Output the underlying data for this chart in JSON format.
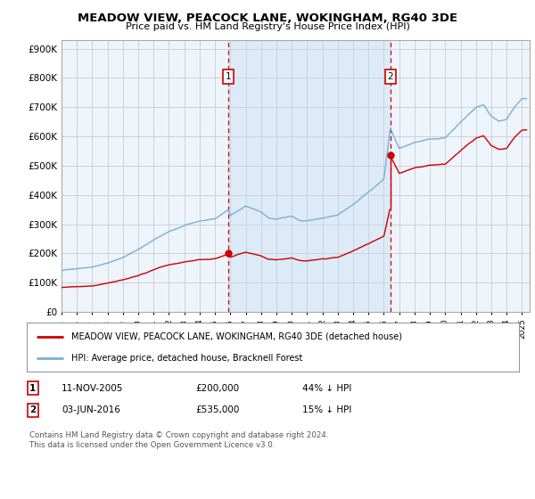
{
  "title": "MEADOW VIEW, PEACOCK LANE, WOKINGHAM, RG40 3DE",
  "subtitle": "Price paid vs. HM Land Registry's House Price Index (HPI)",
  "ylabel_ticks": [
    "£0",
    "£100K",
    "£200K",
    "£300K",
    "£400K",
    "£500K",
    "£600K",
    "£700K",
    "£800K",
    "£900K"
  ],
  "ytick_values": [
    0,
    100000,
    200000,
    300000,
    400000,
    500000,
    600000,
    700000,
    800000,
    900000
  ],
  "ylim": [
    0,
    930000
  ],
  "xlim_start": 1995.0,
  "xlim_end": 2025.5,
  "transaction1": {
    "date_num": 2005.87,
    "price": 200000,
    "label": "1"
  },
  "transaction2": {
    "date_num": 2016.42,
    "price": 535000,
    "label": "2"
  },
  "legend_red": "MEADOW VIEW, PEACOCK LANE, WOKINGHAM, RG40 3DE (detached house)",
  "legend_blue": "HPI: Average price, detached house, Bracknell Forest",
  "footnote": "Contains HM Land Registry data © Crown copyright and database right 2024.\nThis data is licensed under the Open Government Licence v3.0.",
  "red_color": "#cc0000",
  "blue_color": "#7aafd4",
  "shade_color": "#ddeeff",
  "background_plot": "#eef4fb",
  "grid_color": "#cccccc"
}
